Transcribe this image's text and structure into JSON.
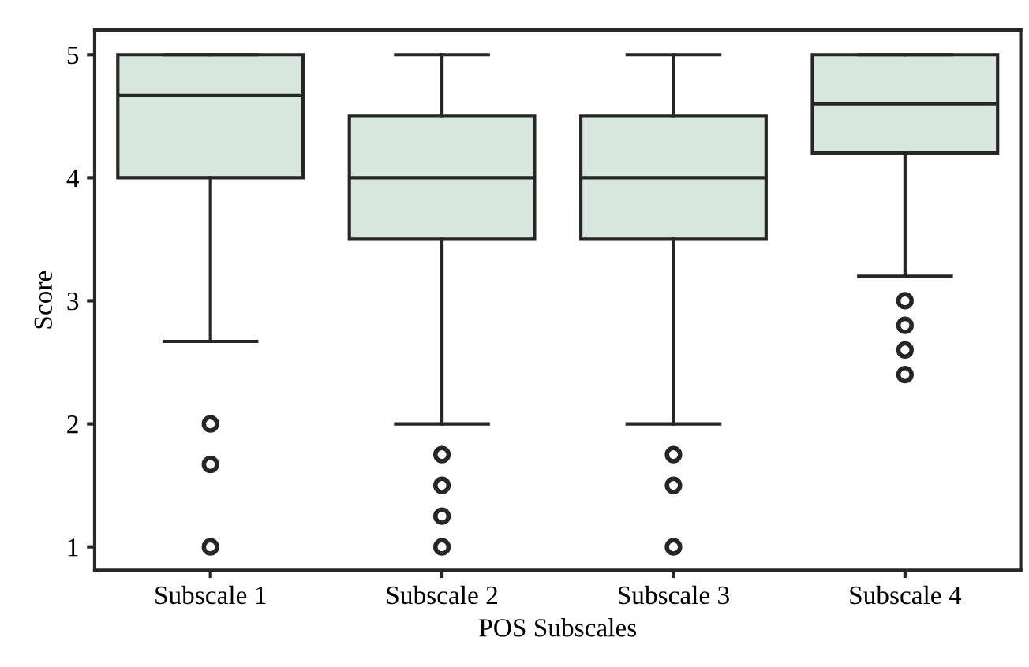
{
  "chart_data": {
    "type": "box",
    "xlabel": "POS Subscales",
    "ylabel": "Score",
    "categories": [
      "Subscale 1",
      "Subscale 2",
      "Subscale 3",
      "Subscale 4"
    ],
    "color": "#d8e7de",
    "boxes": [
      {
        "low": 2.67,
        "q1": 4,
        "median": 4.67,
        "q3": 5,
        "high": 5,
        "outliers": [
          2,
          1.67,
          1
        ]
      },
      {
        "low": 2,
        "q1": 3.5,
        "median": 4,
        "q3": 4.5,
        "high": 5,
        "outliers": [
          1.75,
          1.5,
          1.25,
          1
        ]
      },
      {
        "low": 2,
        "q1": 3.5,
        "median": 4,
        "q3": 4.5,
        "high": 5,
        "outliers": [
          1.75,
          1.5,
          1
        ]
      },
      {
        "low": 3.2,
        "q1": 4.2,
        "median": 4.6,
        "q3": 5,
        "high": 5,
        "outliers": [
          3,
          2.8,
          2.6,
          2.4
        ]
      }
    ],
    "ylim": [
      0.81,
      5.2
    ],
    "yticks": [
      1,
      2,
      3,
      4,
      5
    ],
    "grid": false,
    "legend": false
  }
}
